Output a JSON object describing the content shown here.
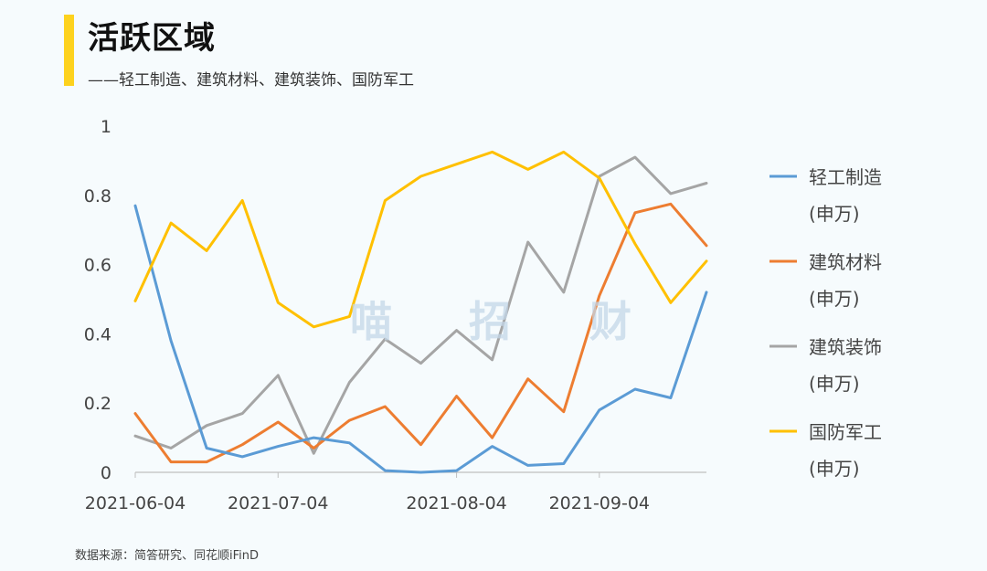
{
  "header": {
    "title": "活跃区域",
    "subtitle": "——轻工制造、建筑材料、建筑装饰、国防军工"
  },
  "footer": {
    "source": "数据来源：简答研究、同花顺iFinD"
  },
  "watermark": [
    "喵",
    "招",
    "财"
  ],
  "chart_data": {
    "type": "line",
    "title": "活跃区域",
    "xlabel": "",
    "ylabel": "",
    "ylim": [
      0,
      1
    ],
    "yticks": [
      "0",
      "0.2",
      "0.4",
      "0.6",
      "0.8",
      "1"
    ],
    "xtick_labels": [
      {
        "label": "2021-06-04",
        "index": 0
      },
      {
        "label": "2021-07-04",
        "index": 4
      },
      {
        "label": "2021-08-04",
        "index": 9
      },
      {
        "label": "2021-09-04",
        "index": 13
      }
    ],
    "n_points": 17,
    "grid": false,
    "legend_position": "right",
    "series": [
      {
        "name": "轻工制造",
        "unit": "(申万)",
        "color": "#5b9bd5",
        "values": [
          0.77,
          0.38,
          0.07,
          0.045,
          0.075,
          0.1,
          0.085,
          0.005,
          0.0,
          0.005,
          0.075,
          0.02,
          0.025,
          0.18,
          0.24,
          0.215,
          0.52
        ]
      },
      {
        "name": "建筑材料",
        "unit": "(申万)",
        "color": "#ed7d31",
        "values": [
          0.17,
          0.03,
          0.03,
          0.08,
          0.145,
          0.07,
          0.15,
          0.19,
          0.08,
          0.22,
          0.1,
          0.27,
          0.175,
          0.51,
          0.75,
          0.775,
          0.655
        ]
      },
      {
        "name": "建筑装饰",
        "unit": "(申万)",
        "color": "#a5a5a5",
        "values": [
          0.105,
          0.07,
          0.135,
          0.17,
          0.28,
          0.055,
          0.26,
          0.385,
          0.315,
          0.41,
          0.325,
          0.665,
          0.52,
          0.855,
          0.91,
          0.805,
          0.835
        ]
      },
      {
        "name": "国防军工",
        "unit": "(申万)",
        "color": "#ffc000",
        "values": [
          0.495,
          0.72,
          0.64,
          0.785,
          0.49,
          0.42,
          0.45,
          0.785,
          0.855,
          0.89,
          0.925,
          0.875,
          0.925,
          0.85,
          0.66,
          0.49,
          0.61
        ]
      }
    ]
  }
}
